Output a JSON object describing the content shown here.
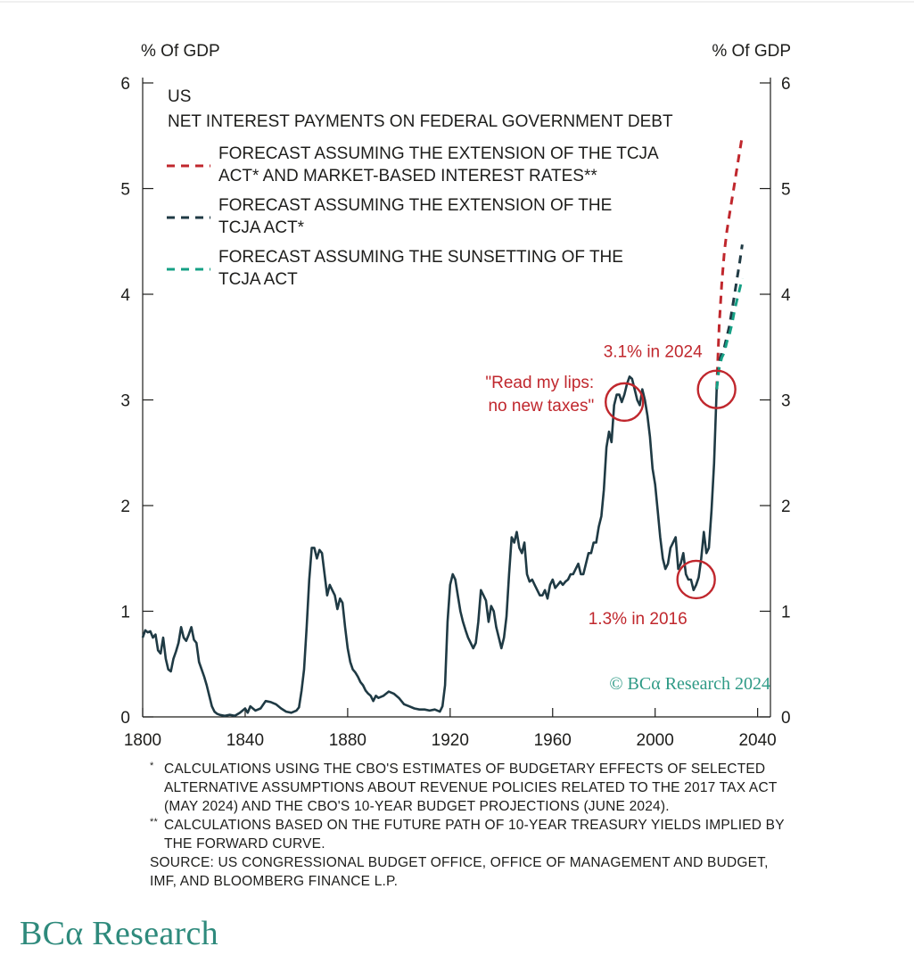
{
  "chart_data": {
    "type": "line",
    "title": "US",
    "subtitle": "NET INTEREST PAYMENTS ON FEDERAL GOVERNMENT DEBT",
    "ylabel_left": "% Of GDP",
    "ylabel_right": "% Of GDP",
    "xlim": [
      1800,
      2045
    ],
    "ylim": [
      0,
      6
    ],
    "x_ticks": [
      1800,
      1840,
      1880,
      1920,
      1960,
      2000,
      2040
    ],
    "y_ticks": [
      0,
      1,
      2,
      3,
      4,
      5,
      6
    ],
    "grid": false,
    "legend_position": "top-left",
    "legend": [
      {
        "line1": "FORECAST ASSUMING THE EXTENSION OF THE TCJA",
        "line2": "ACT* AND MARKET-BASED INTEREST RATES**",
        "color": "#c0272d",
        "style": "dashed"
      },
      {
        "line1": "FORECAST ASSUMING THE EXTENSION OF THE",
        "line2": "TCJA ACT*",
        "color": "#1f3a44",
        "style": "dashed"
      },
      {
        "line1": "FORECAST ASSUMING THE SUNSETTING OF THE",
        "line2": "TCJA ACT",
        "color": "#16a085",
        "style": "dashed"
      }
    ],
    "series": [
      {
        "style": "solid",
        "color": "#1f3a44",
        "points": [
          [
            1800,
            0.75
          ],
          [
            1801,
            0.82
          ],
          [
            1802,
            0.8
          ],
          [
            1803,
            0.81
          ],
          [
            1804,
            0.75
          ],
          [
            1805,
            0.78
          ],
          [
            1806,
            0.63
          ],
          [
            1807,
            0.6
          ],
          [
            1808,
            0.75
          ],
          [
            1809,
            0.55
          ],
          [
            1810,
            0.45
          ],
          [
            1811,
            0.43
          ],
          [
            1812,
            0.55
          ],
          [
            1813,
            0.62
          ],
          [
            1814,
            0.7
          ],
          [
            1815,
            0.85
          ],
          [
            1816,
            0.75
          ],
          [
            1817,
            0.72
          ],
          [
            1818,
            0.78
          ],
          [
            1819,
            0.85
          ],
          [
            1820,
            0.73
          ],
          [
            1821,
            0.7
          ],
          [
            1822,
            0.52
          ],
          [
            1823,
            0.45
          ],
          [
            1824,
            0.38
          ],
          [
            1825,
            0.3
          ],
          [
            1826,
            0.2
          ],
          [
            1827,
            0.1
          ],
          [
            1828,
            0.05
          ],
          [
            1829,
            0.03
          ],
          [
            1830,
            0.02
          ],
          [
            1832,
            0.01
          ],
          [
            1834,
            0.02
          ],
          [
            1836,
            0.01
          ],
          [
            1838,
            0.04
          ],
          [
            1840,
            0.08
          ],
          [
            1841,
            0.04
          ],
          [
            1842,
            0.1
          ],
          [
            1844,
            0.06
          ],
          [
            1846,
            0.08
          ],
          [
            1848,
            0.15
          ],
          [
            1850,
            0.14
          ],
          [
            1852,
            0.12
          ],
          [
            1854,
            0.08
          ],
          [
            1856,
            0.05
          ],
          [
            1858,
            0.04
          ],
          [
            1860,
            0.06
          ],
          [
            1861,
            0.09
          ],
          [
            1862,
            0.25
          ],
          [
            1863,
            0.45
          ],
          [
            1864,
            0.85
          ],
          [
            1865,
            1.3
          ],
          [
            1866,
            1.6
          ],
          [
            1867,
            1.6
          ],
          [
            1868,
            1.5
          ],
          [
            1869,
            1.58
          ],
          [
            1870,
            1.55
          ],
          [
            1871,
            1.35
          ],
          [
            1872,
            1.15
          ],
          [
            1873,
            1.25
          ],
          [
            1874,
            1.2
          ],
          [
            1875,
            1.15
          ],
          [
            1876,
            1.02
          ],
          [
            1877,
            1.12
          ],
          [
            1878,
            1.08
          ],
          [
            1879,
            0.85
          ],
          [
            1880,
            0.65
          ],
          [
            1881,
            0.52
          ],
          [
            1882,
            0.45
          ],
          [
            1883,
            0.42
          ],
          [
            1884,
            0.38
          ],
          [
            1885,
            0.33
          ],
          [
            1886,
            0.3
          ],
          [
            1887,
            0.25
          ],
          [
            1888,
            0.22
          ],
          [
            1889,
            0.2
          ],
          [
            1890,
            0.15
          ],
          [
            1891,
            0.2
          ],
          [
            1892,
            0.18
          ],
          [
            1894,
            0.2
          ],
          [
            1896,
            0.24
          ],
          [
            1898,
            0.22
          ],
          [
            1900,
            0.18
          ],
          [
            1902,
            0.12
          ],
          [
            1904,
            0.1
          ],
          [
            1906,
            0.08
          ],
          [
            1908,
            0.07
          ],
          [
            1910,
            0.07
          ],
          [
            1912,
            0.06
          ],
          [
            1914,
            0.07
          ],
          [
            1916,
            0.05
          ],
          [
            1917,
            0.1
          ],
          [
            1918,
            0.3
          ],
          [
            1919,
            0.9
          ],
          [
            1920,
            1.25
          ],
          [
            1921,
            1.35
          ],
          [
            1922,
            1.3
          ],
          [
            1923,
            1.15
          ],
          [
            1924,
            1.0
          ],
          [
            1925,
            0.9
          ],
          [
            1926,
            0.82
          ],
          [
            1927,
            0.75
          ],
          [
            1928,
            0.7
          ],
          [
            1929,
            0.65
          ],
          [
            1930,
            0.7
          ],
          [
            1931,
            0.9
          ],
          [
            1932,
            1.2
          ],
          [
            1933,
            1.15
          ],
          [
            1934,
            1.1
          ],
          [
            1935,
            0.9
          ],
          [
            1936,
            1.05
          ],
          [
            1937,
            1.0
          ],
          [
            1938,
            0.85
          ],
          [
            1939,
            0.75
          ],
          [
            1940,
            0.65
          ],
          [
            1941,
            0.75
          ],
          [
            1942,
            0.95
          ],
          [
            1943,
            1.35
          ],
          [
            1944,
            1.7
          ],
          [
            1945,
            1.65
          ],
          [
            1946,
            1.75
          ],
          [
            1947,
            1.6
          ],
          [
            1948,
            1.55
          ],
          [
            1949,
            1.65
          ],
          [
            1950,
            1.35
          ],
          [
            1951,
            1.28
          ],
          [
            1952,
            1.3
          ],
          [
            1953,
            1.25
          ],
          [
            1954,
            1.2
          ],
          [
            1955,
            1.15
          ],
          [
            1956,
            1.15
          ],
          [
            1957,
            1.2
          ],
          [
            1958,
            1.12
          ],
          [
            1959,
            1.25
          ],
          [
            1960,
            1.3
          ],
          [
            1961,
            1.22
          ],
          [
            1962,
            1.25
          ],
          [
            1963,
            1.28
          ],
          [
            1964,
            1.25
          ],
          [
            1965,
            1.28
          ],
          [
            1966,
            1.3
          ],
          [
            1967,
            1.35
          ],
          [
            1968,
            1.35
          ],
          [
            1969,
            1.4
          ],
          [
            1970,
            1.45
          ],
          [
            1971,
            1.35
          ],
          [
            1972,
            1.35
          ],
          [
            1973,
            1.45
          ],
          [
            1974,
            1.55
          ],
          [
            1975,
            1.55
          ],
          [
            1976,
            1.65
          ],
          [
            1977,
            1.65
          ],
          [
            1978,
            1.8
          ],
          [
            1979,
            1.9
          ],
          [
            1980,
            2.15
          ],
          [
            1981,
            2.55
          ],
          [
            1982,
            2.7
          ],
          [
            1983,
            2.6
          ],
          [
            1984,
            2.95
          ],
          [
            1985,
            3.05
          ],
          [
            1986,
            3.05
          ],
          [
            1987,
            2.98
          ],
          [
            1988,
            3.05
          ],
          [
            1989,
            3.15
          ],
          [
            1990,
            3.22
          ],
          [
            1991,
            3.2
          ],
          [
            1992,
            3.1
          ],
          [
            1993,
            3.0
          ],
          [
            1994,
            2.95
          ],
          [
            1995,
            3.1
          ],
          [
            1996,
            3.0
          ],
          [
            1997,
            2.85
          ],
          [
            1998,
            2.65
          ],
          [
            1999,
            2.35
          ],
          [
            2000,
            2.2
          ],
          [
            2001,
            1.95
          ],
          [
            2002,
            1.7
          ],
          [
            2003,
            1.5
          ],
          [
            2004,
            1.4
          ],
          [
            2005,
            1.45
          ],
          [
            2006,
            1.6
          ],
          [
            2007,
            1.65
          ],
          [
            2008,
            1.7
          ],
          [
            2009,
            1.4
          ],
          [
            2010,
            1.45
          ],
          [
            2011,
            1.55
          ],
          [
            2012,
            1.35
          ],
          [
            2013,
            1.3
          ],
          [
            2014,
            1.3
          ],
          [
            2015,
            1.2
          ],
          [
            2016,
            1.25
          ],
          [
            2017,
            1.32
          ],
          [
            2018,
            1.5
          ],
          [
            2019,
            1.75
          ],
          [
            2020,
            1.55
          ],
          [
            2021,
            1.6
          ],
          [
            2022,
            1.95
          ],
          [
            2023,
            2.4
          ],
          [
            2024,
            3.1
          ]
        ]
      },
      {
        "name": "FORECAST ASSUMING THE EXTENSION OF THE TCJA ACT* AND MARKET-BASED INTEREST RATES**",
        "style": "dashed",
        "color": "#c0272d",
        "points": [
          [
            2024,
            3.1
          ],
          [
            2025,
            3.7
          ],
          [
            2026,
            4.1
          ],
          [
            2027,
            4.4
          ],
          [
            2028,
            4.6
          ],
          [
            2029,
            4.75
          ],
          [
            2030,
            4.9
          ],
          [
            2031,
            5.05
          ],
          [
            2032,
            5.2
          ],
          [
            2033,
            5.35
          ],
          [
            2034,
            5.5
          ]
        ]
      },
      {
        "name": "FORECAST ASSUMING THE EXTENSION OF THE TCJA ACT*",
        "style": "dashed",
        "color": "#1f3a44",
        "points": [
          [
            2024,
            3.1
          ],
          [
            2025,
            3.35
          ],
          [
            2026,
            3.45
          ],
          [
            2027,
            3.5
          ],
          [
            2028,
            3.6
          ],
          [
            2029,
            3.7
          ],
          [
            2030,
            3.85
          ],
          [
            2031,
            4.0
          ],
          [
            2032,
            4.15
          ],
          [
            2033,
            4.3
          ],
          [
            2034,
            4.47
          ]
        ]
      },
      {
        "name": "FORECAST ASSUMING THE SUNSETTING OF THE TCJA ACT",
        "style": "dashed",
        "color": "#16a085",
        "points": [
          [
            2024,
            3.1
          ],
          [
            2025,
            3.3
          ],
          [
            2026,
            3.4
          ],
          [
            2027,
            3.45
          ],
          [
            2028,
            3.55
          ],
          [
            2029,
            3.62
          ],
          [
            2030,
            3.72
          ],
          [
            2031,
            3.85
          ],
          [
            2032,
            3.95
          ],
          [
            2033,
            4.05
          ],
          [
            2034,
            4.15
          ]
        ]
      }
    ],
    "annotations": [
      {
        "line1": "3.1% in 2024",
        "line2": "",
        "x": 2024,
        "y": 3.1,
        "color": "#c0272d"
      },
      {
        "line1": "\"Read my lips:",
        "line2": "no new taxes\"",
        "x": 1988,
        "y": 2.98,
        "color": "#c0272d"
      },
      {
        "line1": "1.3% in 2016",
        "line2": "",
        "x": 2016,
        "y": 1.3,
        "color": "#c0272d"
      }
    ],
    "watermark": "© BCα Research 2024"
  },
  "footnotes": [
    {
      "mark": "*",
      "text": "CALCULATIONS USING THE CBO'S ESTIMATES OF BUDGETARY EFFECTS OF SELECTED ALTERNATIVE ASSUMPTIONS ABOUT REVENUE POLICIES RELATED TO THE 2017 TAX ACT (MAY 2024) AND THE CBO'S 10-YEAR BUDGET PROJECTIONS (JUNE 2024)."
    },
    {
      "mark": "**",
      "text": "CALCULATIONS BASED ON THE FUTURE PATH OF 10-YEAR TREASURY YIELDS IMPLIED BY THE FORWARD CURVE."
    }
  ],
  "source": "SOURCE: US CONGRESSIONAL BUDGET OFFICE, OFFICE OF MANAGEMENT AND BUDGET, IMF, AND BLOOMBERG FINANCE L.P.",
  "brand": "BCα Research"
}
